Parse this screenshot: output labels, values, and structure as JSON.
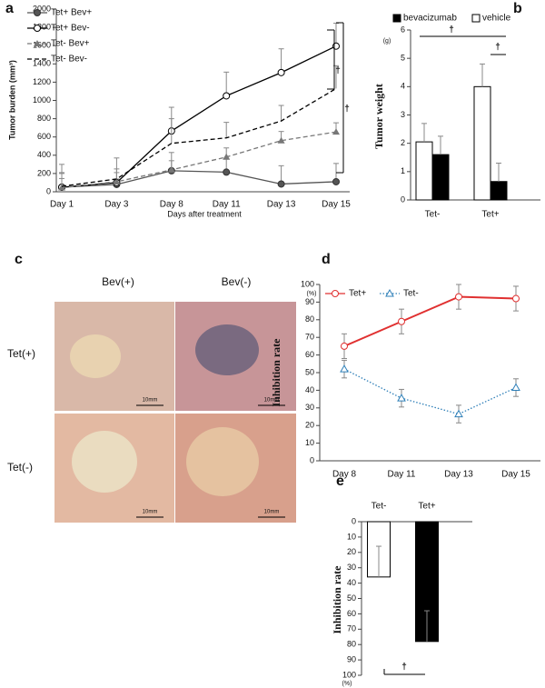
{
  "panel_labels": [
    "a",
    "b",
    "c",
    "d",
    "e"
  ],
  "photo": {
    "columns": [
      "Bev(+)",
      "Bev(-)"
    ],
    "rows": [
      "Tet(+)",
      "Tet(-)"
    ],
    "scale_bars": [
      "10mm",
      "10mm",
      "10mm",
      "10mm"
    ]
  },
  "chart_data": [
    {
      "type": "line",
      "y_title": "Tumor burden (mm³)",
      "x_title": "Days after treatment",
      "categories": [
        "Day 1",
        "Day 3",
        "Day 8",
        "Day 11",
        "Day 13",
        "Day 15"
      ],
      "ylim": [
        0,
        2000
      ],
      "yticks": [
        0,
        200,
        400,
        600,
        800,
        1000,
        1200,
        1400,
        1600,
        1800,
        2000
      ],
      "error_bars": "upper",
      "annotations": [
        "†",
        "†"
      ],
      "series": [
        {
          "name": "Tet+ Bev+",
          "color": "#555555",
          "marker": "filled-circle",
          "dash": "solid",
          "values": [
            50,
            80,
            230,
            215,
            85,
            110
          ],
          "errors": [
            250,
            60,
            200,
            150,
            200,
            200
          ]
        },
        {
          "name": "Tet+ Bev-",
          "color": "#000000",
          "marker": "open-circle",
          "dash": "solid",
          "values": [
            50,
            100,
            665,
            1050,
            1305,
            1595
          ],
          "errors": [
            150,
            150,
            260,
            260,
            260,
            250
          ]
        },
        {
          "name": "Tet- Bev+",
          "color": "#777777",
          "marker": "triangle",
          "dash": "dashed",
          "values": [
            45,
            110,
            240,
            380,
            560,
            655
          ],
          "errors": [
            100,
            100,
            100,
            100,
            100,
            100
          ]
        },
        {
          "name": "Tet- Bev-",
          "color": "#000000",
          "marker": "none",
          "dash": "dashed",
          "values": [
            60,
            140,
            530,
            590,
            775,
            1130
          ],
          "errors": [
            150,
            230,
            270,
            170,
            170,
            250
          ]
        }
      ]
    },
    {
      "type": "bar",
      "y_title": "Tumor weight",
      "y_unit": "(g)",
      "categories": [
        "Tet-",
        "Tet+"
      ],
      "ylim": [
        0,
        6
      ],
      "yticks": [
        0,
        1,
        2,
        3,
        4,
        5,
        6
      ],
      "error_bars": "upper",
      "annotations": [
        "†",
        "†"
      ],
      "series": [
        {
          "name": "bevacizumab",
          "color": "#000000",
          "values": [
            1.6,
            0.65
          ],
          "errors": [
            0.65,
            0.65
          ]
        },
        {
          "name": "vehicle",
          "color": "#ffffff",
          "values": [
            2.05,
            4.0
          ],
          "errors": [
            0.65,
            0.8
          ]
        }
      ]
    },
    {
      "type": "line",
      "y_title": "Inhibition rate",
      "y_unit": "(%)",
      "categories": [
        "Day 8",
        "Day 11",
        "Day 13",
        "Day 15"
      ],
      "ylim": [
        0,
        100
      ],
      "yticks": [
        0,
        10,
        20,
        30,
        40,
        50,
        60,
        70,
        80,
        90,
        100
      ],
      "error_bars": "both",
      "series": [
        {
          "name": "Tet+",
          "color": "#e03030",
          "marker": "open-circle",
          "dash": "solid",
          "values": [
            65,
            79,
            93,
            92
          ],
          "errors": [
            7,
            7,
            7,
            7
          ]
        },
        {
          "name": "Tet-",
          "color": "#2e7fb8",
          "marker": "open-triangle",
          "dash": "dotted",
          "values": [
            52,
            35.5,
            26.5,
            41.5
          ],
          "errors": [
            5,
            5,
            5,
            5
          ]
        }
      ]
    },
    {
      "type": "bar",
      "y_title": "Inhibition rate",
      "y_unit": "(%)",
      "y_inverted": true,
      "categories": [
        "Tet-",
        "Tet+"
      ],
      "ylim": [
        0,
        100
      ],
      "yticks": [
        0,
        10,
        20,
        30,
        40,
        50,
        60,
        70,
        80,
        90,
        100
      ],
      "error_bars": "upper",
      "annotations": [
        "†"
      ],
      "values": [
        36,
        78
      ],
      "errors": [
        20,
        20
      ],
      "colors": [
        "#ffffff",
        "#000000"
      ]
    }
  ]
}
